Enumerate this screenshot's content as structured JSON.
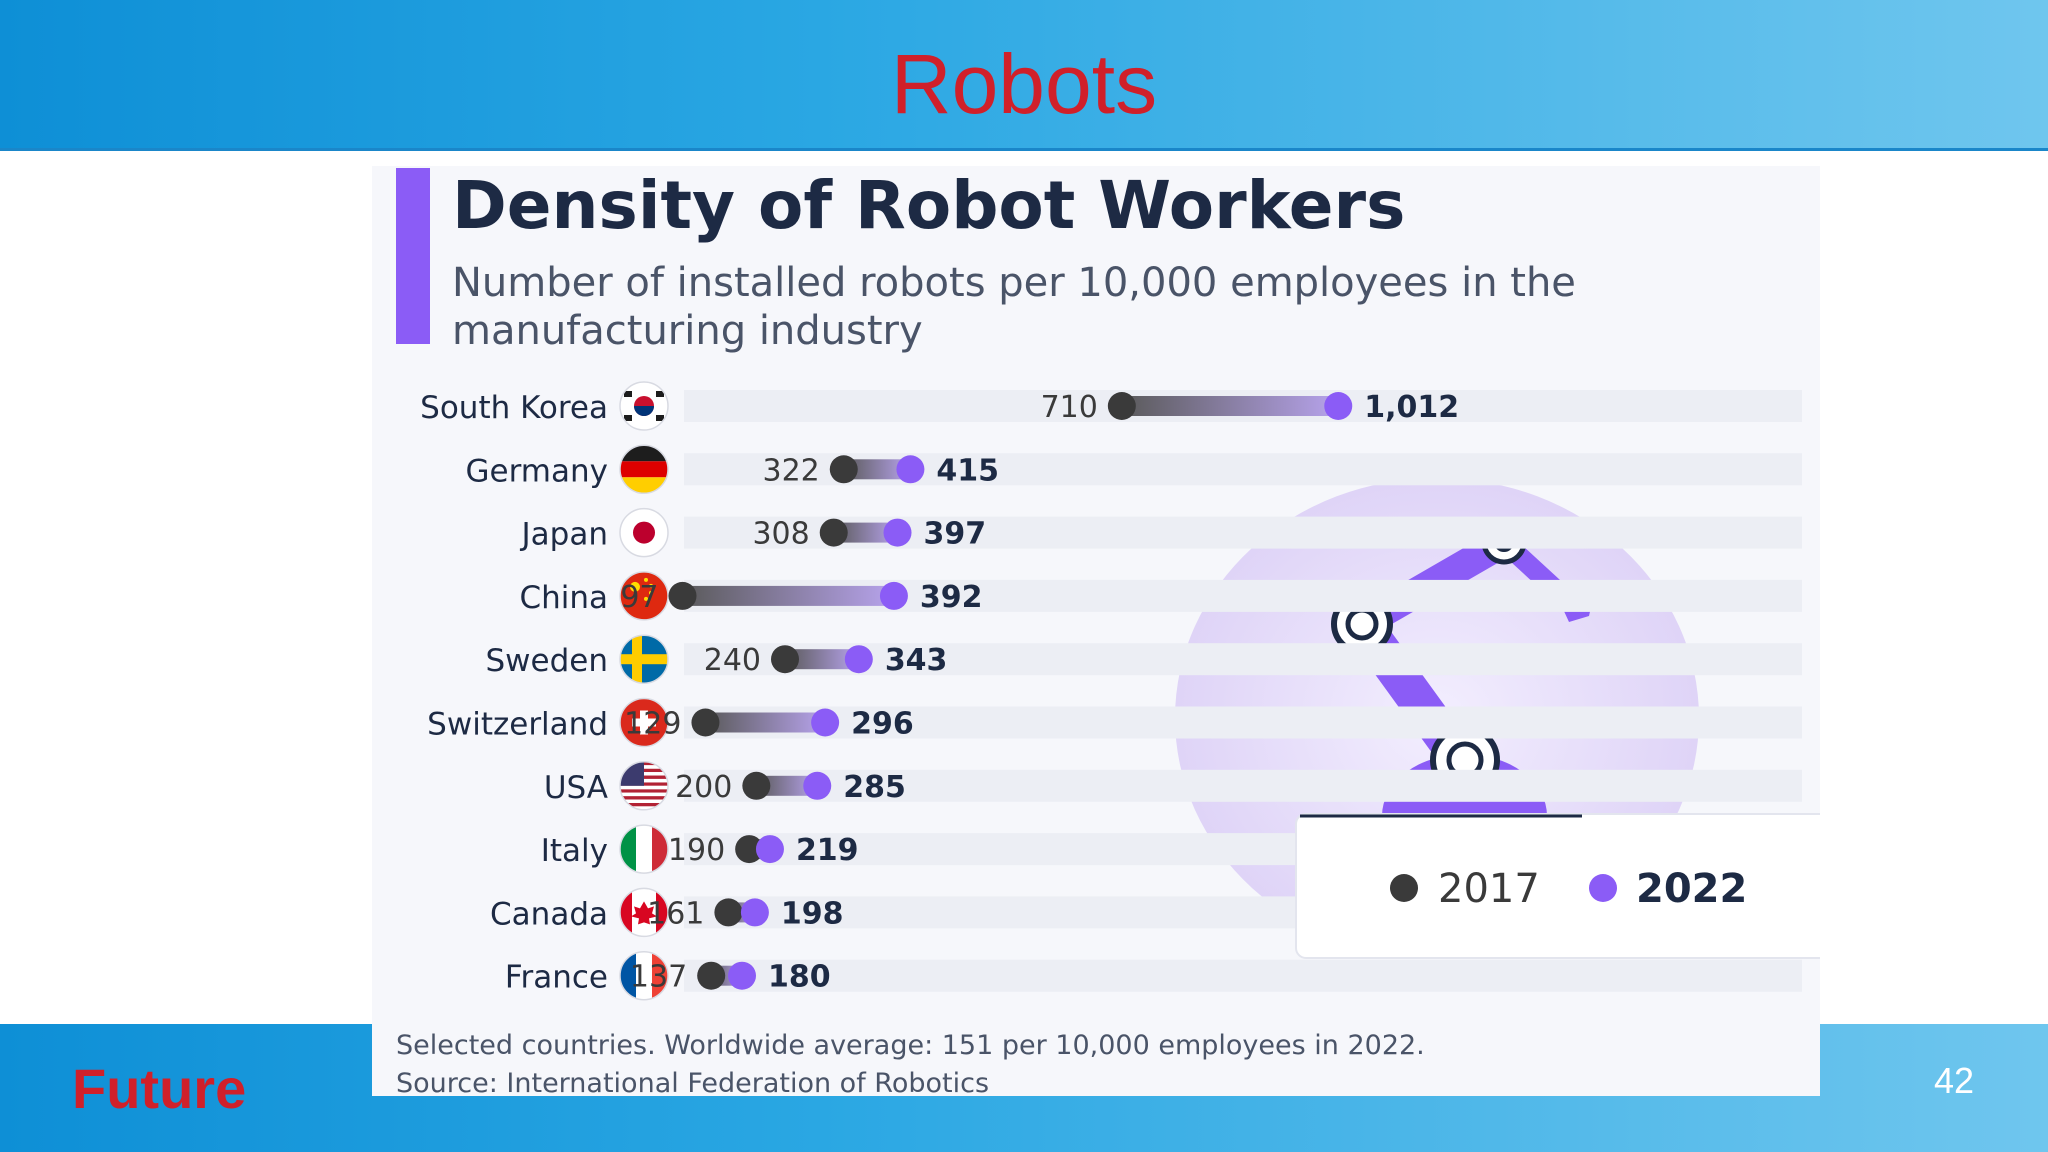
{
  "slide": {
    "title": "Robots",
    "footer_label": "Future",
    "page_number": "42"
  },
  "chart_data": {
    "type": "dumbbell",
    "title": "Density of Robot Workers",
    "subtitle_lines": [
      "Number of installed robots per 10,000 employees in the",
      "manufacturing industry"
    ],
    "categories": [
      "South Korea",
      "Germany",
      "Japan",
      "China",
      "Sweden",
      "Switzerland",
      "USA",
      "Italy",
      "Canada",
      "France"
    ],
    "series": [
      {
        "name": "2017",
        "values": [
          710,
          322,
          308,
          97,
          240,
          129,
          200,
          190,
          161,
          137
        ],
        "color": "#3a3a3a"
      },
      {
        "name": "2022",
        "values": [
          1012,
          415,
          397,
          392,
          343,
          296,
          285,
          219,
          198,
          180
        ],
        "color": "#8b5cf6"
      }
    ],
    "value_labels_2017": [
      "710",
      "322",
      "308",
      "97",
      "240",
      "129",
      "200",
      "190",
      "161",
      "137"
    ],
    "value_labels_2022": [
      "1,012",
      "415",
      "397",
      "392",
      "343",
      "296",
      "285",
      "219",
      "198",
      "180"
    ],
    "flags": [
      "flag-south-korea",
      "flag-germany",
      "flag-japan",
      "flag-china",
      "flag-sweden",
      "flag-switzerland",
      "flag-usa",
      "flag-italy",
      "flag-canada",
      "flag-france"
    ],
    "legend_position": "bottom-right",
    "notes": [
      "Selected countries. Worldwide average: 151 per 10,000 employees in 2022.",
      "Source: International Federation of Robotics"
    ],
    "accent_color": "#8b5cf6",
    "text_color": "#1d2a44"
  }
}
